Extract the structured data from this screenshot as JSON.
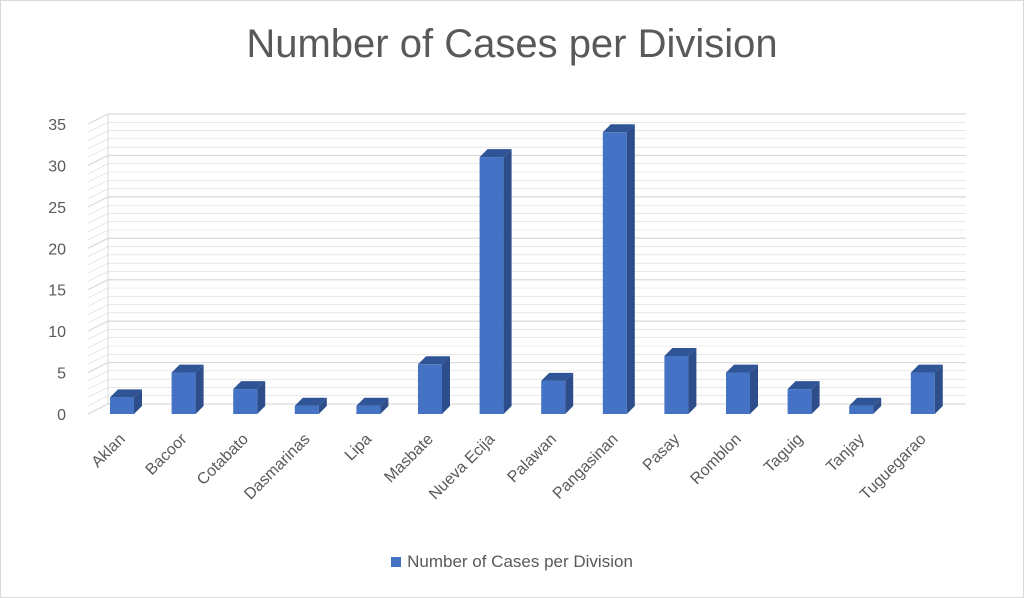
{
  "chart_data": {
    "type": "bar",
    "title": "Number of Cases per Division",
    "categories": [
      "Aklan",
      "Bacoor",
      "Cotabato",
      "Dasmarinas",
      "Lipa",
      "Masbate",
      "Nueva Ecija",
      "Palawan",
      "Pangasinan",
      "Pasay",
      "Romblon",
      "Taguig",
      "Tanjay",
      "Tuguegarao"
    ],
    "series": [
      {
        "name": "Number of Cases per Division",
        "values": [
          2,
          5,
          3,
          1,
          1,
          6,
          31,
          4,
          34,
          7,
          5,
          3,
          1,
          5
        ]
      }
    ],
    "y_ticks": [
      "0",
      "5",
      "10",
      "15",
      "20",
      "25",
      "30",
      "35"
    ],
    "ylim": [
      0,
      35
    ],
    "grid": true,
    "legend_position": "bottom",
    "colors": {
      "bar_front": "#4472c4",
      "bar_side": "#2e4d8b",
      "bar_top": "#2f5597",
      "grid": "#d9d9d9",
      "text": "#595959"
    }
  }
}
